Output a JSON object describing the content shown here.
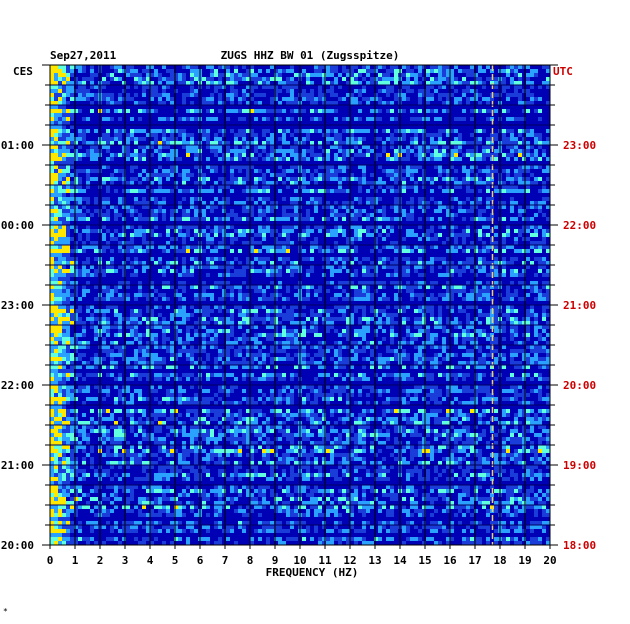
{
  "chart_data": {
    "type": "heatmap",
    "date_label": "Sep27,2011",
    "title": "ZUGS HHZ BW 01 (Zugsspitze)",
    "xlabel": "FREQUENCY (HZ)",
    "left_axis_label": "CES",
    "right_axis_label": "UTC",
    "xlim": [
      0,
      20
    ],
    "x_ticks": [
      "0",
      "1",
      "2",
      "3",
      "4",
      "5",
      "6",
      "7",
      "8",
      "9",
      "10",
      "11",
      "12",
      "13",
      "14",
      "15",
      "16",
      "17",
      "18",
      "19",
      "20"
    ],
    "left_time_ticks": [
      "01:00",
      "00:00",
      "23:00",
      "22:00",
      "21:00",
      "20:00"
    ],
    "right_time_ticks": [
      "23:00",
      "22:00",
      "21:00",
      "20:00",
      "19:00",
      "18:00"
    ],
    "time_span_hours": 6,
    "grid": true,
    "persistent_line_hz": 17.7,
    "colors": {
      "background": "#0000b4",
      "low": "#1a3cd8",
      "mid": "#2aa0ff",
      "high": "#60ffe0",
      "peak": "#ffe800",
      "utc_text": "#cc0000",
      "text": "#000000"
    }
  },
  "corner_mark": "*"
}
